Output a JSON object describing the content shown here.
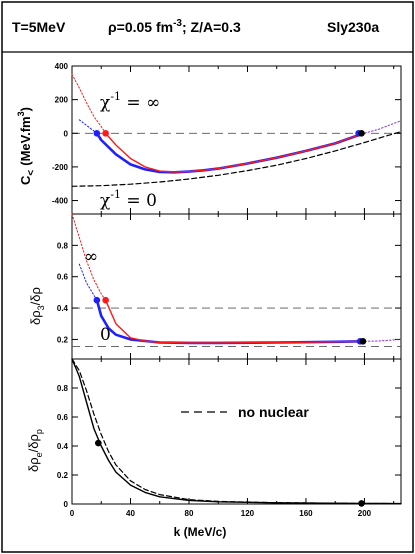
{
  "header": {
    "temperature": "T=5MeV",
    "density": "ρ=0.05 fm",
    "density_exp": "-3",
    "ratio": "; Z/A=0.3",
    "model": "Sly230a"
  },
  "colors": {
    "blue": "#1f1fff",
    "red": "#ff1a1a",
    "purple": "#8a2be2",
    "black": "#000000",
    "grey": "#555555"
  },
  "chart_data": [
    {
      "type": "line",
      "panel": "top",
      "ylabel": "C< (MeV.fm³)",
      "ylabel_main": "C",
      "ylabel_sub": "<",
      "ylabel_units": "(MeV.fm",
      "ylabel_exp": "3",
      "ylabel_close": ")",
      "ylim": [
        -480,
        400
      ],
      "yticks": [
        400,
        200,
        0,
        -200,
        -400
      ],
      "ytick_labels": [
        "400",
        "200",
        "0",
        "-200",
        "-400"
      ],
      "xlim": [
        0,
        225
      ],
      "reference_line": 0,
      "annotations": [
        {
          "text": "χ",
          "sup": "-1",
          "tail": " = ∞",
          "x": 27,
          "y": 155
        },
        {
          "text": "χ",
          "sup": "-1",
          "tail": " = 0",
          "x": 27,
          "y": -380
        }
      ],
      "series": [
        {
          "role": "blue-solid",
          "x": [
            17,
            20,
            30,
            40,
            50,
            60,
            70,
            80,
            90,
            100,
            120,
            140,
            160,
            180,
            198
          ],
          "y": [
            0,
            -40,
            -125,
            -185,
            -215,
            -230,
            -232,
            -228,
            -220,
            -210,
            -180,
            -145,
            -105,
            -60,
            -5
          ]
        },
        {
          "role": "blue-dotted",
          "x": [
            5,
            17
          ],
          "y": [
            80,
            0
          ]
        },
        {
          "role": "red-dotted",
          "x": [
            0,
            5,
            10,
            15,
            20,
            23
          ],
          "y": [
            350,
            270,
            180,
            100,
            40,
            0
          ]
        },
        {
          "role": "red-solid",
          "x": [
            23,
            30,
            40,
            50,
            60,
            70,
            80,
            90,
            100,
            120,
            140,
            160,
            180,
            198
          ],
          "y": [
            0,
            -70,
            -150,
            -200,
            -225,
            -230,
            -228,
            -220,
            -210,
            -180,
            -145,
            -105,
            -60,
            -5
          ]
        },
        {
          "role": "black-dashed",
          "x": [
            0,
            20,
            40,
            60,
            80,
            100,
            120,
            140,
            160,
            180,
            200,
            225
          ],
          "y": [
            -315,
            -312,
            -303,
            -290,
            -272,
            -250,
            -222,
            -190,
            -150,
            -105,
            -55,
            10
          ]
        },
        {
          "role": "purple-dotted",
          "x": [
            198,
            210,
            225
          ],
          "y": [
            -5,
            25,
            75
          ]
        }
      ],
      "markers": [
        {
          "color": "blue",
          "x": 17,
          "y": 0
        },
        {
          "color": "red",
          "x": 23,
          "y": 0
        },
        {
          "color": "blue",
          "x": 196,
          "y": 0
        },
        {
          "color": "black",
          "x": 198,
          "y": 0
        }
      ]
    },
    {
      "type": "line",
      "panel": "middle",
      "ylabel": "δρ3/δρ",
      "ylabel_a": "δρ",
      "ylabel_sub": "3",
      "ylabel_b": "/δρ",
      "ylim": [
        0.075,
        1.0
      ],
      "yticks": [
        0.2,
        0.4,
        0.6,
        0.8
      ],
      "ytick_labels": [
        "0.2",
        "0.4",
        "0.6",
        "0.8"
      ],
      "xlim": [
        0,
        225
      ],
      "reference_lines": [
        0.4,
        0.155
      ],
      "annotations": [
        {
          "text": "∞",
          "x": 9,
          "y": 0.56
        },
        {
          "text": "0",
          "x": 27,
          "y": 0.155
        }
      ],
      "series": [
        {
          "role": "blue-solid",
          "x": [
            17,
            20,
            25,
            30,
            40,
            50,
            60,
            80,
            100,
            140,
            180,
            198
          ],
          "y": [
            0.45,
            0.35,
            0.27,
            0.23,
            0.2,
            0.19,
            0.18,
            0.178,
            0.178,
            0.18,
            0.185,
            0.188
          ]
        },
        {
          "role": "blue-dotted",
          "x": [
            5,
            10,
            17
          ],
          "y": [
            0.68,
            0.56,
            0.45
          ]
        },
        {
          "role": "red-dotted",
          "x": [
            0,
            5,
            10,
            15,
            20,
            23
          ],
          "y": [
            1.0,
            0.85,
            0.7,
            0.58,
            0.49,
            0.45
          ]
        },
        {
          "role": "red-solid",
          "x": [
            23,
            30,
            40,
            50,
            60,
            80,
            100,
            140,
            180,
            198
          ],
          "y": [
            0.45,
            0.3,
            0.21,
            0.19,
            0.18,
            0.178,
            0.178,
            0.18,
            0.185,
            0.188
          ]
        },
        {
          "role": "purple-dotted",
          "x": [
            198,
            210,
            225
          ],
          "y": [
            0.188,
            0.19,
            0.2
          ]
        }
      ],
      "markers": [
        {
          "color": "blue",
          "x": 17,
          "y": 0.45
        },
        {
          "color": "red",
          "x": 23,
          "y": 0.45
        },
        {
          "color": "blue",
          "x": 197,
          "y": 0.188
        },
        {
          "color": "black",
          "x": 199,
          "y": 0.188
        }
      ]
    },
    {
      "type": "line",
      "panel": "bottom",
      "ylabel": "δρe/δρp",
      "ylabel_a": "δρ",
      "ylabel_sub1": "e",
      "ylabel_b": "/δρ",
      "ylabel_sub2": "p",
      "xlabel": "k (MeV/c)",
      "ylim": [
        0,
        1.0
      ],
      "yticks": [
        0,
        0.2,
        0.4,
        0.6,
        0.8
      ],
      "ytick_labels": [
        "0",
        "0.2",
        "0.4",
        "0.6",
        "0.8"
      ],
      "xlim": [
        0,
        225
      ],
      "xticks": [
        0,
        40,
        80,
        120,
        160,
        200
      ],
      "xtick_labels": [
        "0",
        "40",
        "80",
        "120",
        "160",
        "200"
      ],
      "legend": {
        "label": "no nuclear",
        "position": "top-right"
      },
      "series": [
        {
          "role": "black-solid",
          "x": [
            0,
            5,
            10,
            15,
            20,
            25,
            30,
            40,
            50,
            60,
            80,
            100,
            140,
            198,
            225
          ],
          "y": [
            1.0,
            0.88,
            0.7,
            0.52,
            0.4,
            0.3,
            0.22,
            0.13,
            0.08,
            0.05,
            0.025,
            0.015,
            0.008,
            0.004,
            0.003
          ]
        },
        {
          "role": "black-dashed",
          "x": [
            0,
            5,
            10,
            15,
            20,
            25,
            30,
            40,
            50,
            60,
            80,
            100,
            140,
            198,
            225
          ],
          "y": [
            1.0,
            0.92,
            0.78,
            0.62,
            0.48,
            0.36,
            0.27,
            0.16,
            0.1,
            0.065,
            0.03,
            0.018,
            0.009,
            0.004,
            0.003
          ]
        }
      ],
      "markers": [
        {
          "color": "black",
          "x": 18,
          "y": 0.42
        },
        {
          "color": "black",
          "x": 198,
          "y": 0.004
        }
      ]
    }
  ]
}
